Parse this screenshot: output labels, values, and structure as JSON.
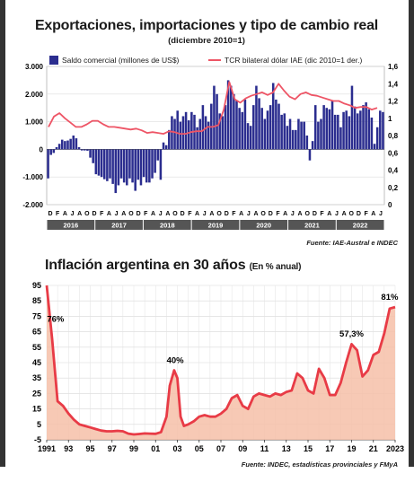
{
  "chart_data": [
    {
      "type": "bar+line",
      "title": "Exportaciones, importaciones y tipo de cambio real",
      "subtitle": "(diciembre 2010=1)",
      "legend": [
        {
          "name": "Saldo comercial (millones de US$)",
          "kind": "bar",
          "color": "#2b2d8f"
        },
        {
          "name": "TCR bilateral dólar IAE (dic 2010=1 der.)",
          "kind": "line",
          "color": "#ee5566"
        }
      ],
      "y_left": {
        "ticks": [
          "3.000",
          "2.000",
          "1.000",
          "0",
          "-1.000",
          "-2.000"
        ],
        "range": [
          -2000,
          3000
        ]
      },
      "y_right": {
        "ticks": [
          "1,6",
          "1,4",
          "1,2",
          "1",
          "0,8",
          "0,6",
          "0,4",
          "0,2",
          "0"
        ],
        "range": [
          0,
          1.6
        ]
      },
      "month_labels": [
        "D",
        "F",
        "A",
        "J",
        "A",
        "O",
        "D",
        "F",
        "A",
        "J",
        "A",
        "O",
        "D",
        "F",
        "A",
        "J",
        "A",
        "O",
        "D",
        "F",
        "A",
        "J",
        "A",
        "O",
        "D",
        "F",
        "A",
        "J",
        "A",
        "O",
        "D",
        "F",
        "A",
        "J",
        "A",
        "O",
        "D",
        "F",
        "A",
        "J",
        "A",
        "O",
        "D",
        "F",
        "A",
        "J"
      ],
      "years": [
        "2016",
        "2017",
        "2018",
        "2019",
        "2020",
        "2021",
        "2022"
      ],
      "bars": [
        -1050,
        -200,
        -130,
        80,
        200,
        350,
        300,
        320,
        380,
        500,
        400,
        80,
        -40,
        -40,
        -50,
        -300,
        -500,
        -900,
        -950,
        -1000,
        -1080,
        -1150,
        -1050,
        -1250,
        -1580,
        -1300,
        -1050,
        -1200,
        -1300,
        -1050,
        -1200,
        -1500,
        -1100,
        -1300,
        -1000,
        -1200,
        -1200,
        -1050,
        -850,
        -400,
        -1100,
        250,
        150,
        700,
        1200,
        1100,
        1400,
        1000,
        1200,
        1350,
        1050,
        1350,
        1250,
        800,
        1100,
        1600,
        1200,
        1000,
        1650,
        2300,
        2000,
        1300,
        1200,
        1600,
        2500,
        2300,
        2000,
        1750,
        1500,
        1350,
        1800,
        950,
        850,
        1600,
        2300,
        1850,
        1500,
        1100,
        1400,
        1600,
        2400,
        1800,
        1650,
        1250,
        1300,
        850,
        1100,
        700,
        700,
        1100,
        1000,
        1000,
        500,
        -400,
        300,
        1600,
        1000,
        1100,
        1600,
        1500,
        1450,
        1750,
        1250,
        1250,
        800,
        1350,
        1400,
        1200,
        2300,
        1550,
        1300,
        1400,
        1600,
        1700,
        1450,
        1150,
        200,
        800,
        1400,
        1350
      ],
      "tcr": [
        0.9,
        1.02,
        1.06,
        1.0,
        0.95,
        0.9,
        0.9,
        0.93,
        0.97,
        0.97,
        0.93,
        0.9,
        0.9,
        0.89,
        0.88,
        0.87,
        0.88,
        0.86,
        0.83,
        0.84,
        0.83,
        0.82,
        0.85,
        0.84,
        0.82,
        0.82,
        0.84,
        0.85,
        0.85,
        0.9,
        0.9,
        0.92,
        1.1,
        1.42,
        1.22,
        1.18,
        1.23,
        1.26,
        1.28,
        1.3,
        1.27,
        1.3,
        1.4,
        1.32,
        1.25,
        1.22,
        1.28,
        1.3,
        1.27,
        1.26,
        1.24,
        1.22,
        1.2,
        1.2,
        1.17,
        1.15,
        1.12,
        1.13,
        1.13,
        1.1,
        1.12
      ],
      "source": "Fuente: IAE-Austral e INDEC"
    },
    {
      "type": "area",
      "title": "Inflación argentina en 30 años",
      "title_unit": "(En % anual)",
      "y_ticks": [
        "95",
        "85",
        "75",
        "65",
        "55",
        "45",
        "35",
        "25",
        "15",
        "5",
        "-5"
      ],
      "y_range": [
        -5,
        95
      ],
      "x_tick_labels": [
        "1991",
        "93",
        "95",
        "97",
        "99",
        "01",
        "03",
        "05",
        "07",
        "09",
        "11",
        "13",
        "15",
        "17",
        "19",
        "21",
        "2023"
      ],
      "x_range": [
        1991,
        2023
      ],
      "series": [
        {
          "color": "#e83b46",
          "points": [
            [
              1991,
              95
            ],
            [
              1991.5,
              60
            ],
            [
              1992,
              20
            ],
            [
              1992.5,
              17
            ],
            [
              1993,
              12
            ],
            [
              1993.5,
              8
            ],
            [
              1994,
              5
            ],
            [
              1994.5,
              4
            ],
            [
              1995,
              3
            ],
            [
              1995.5,
              2
            ],
            [
              1996,
              1
            ],
            [
              1996.5,
              0.5
            ],
            [
              1997,
              0.5
            ],
            [
              1997.5,
              0.8
            ],
            [
              1998,
              0.5
            ],
            [
              1998.5,
              -1
            ],
            [
              1999,
              -1.5
            ],
            [
              1999.5,
              -1.2
            ],
            [
              2000,
              -0.9
            ],
            [
              2000.5,
              -1
            ],
            [
              2001,
              -1.1
            ],
            [
              2001.5,
              0
            ],
            [
              2002,
              10
            ],
            [
              2002.3,
              30
            ],
            [
              2002.7,
              40
            ],
            [
              2003,
              35
            ],
            [
              2003.3,
              10
            ],
            [
              2003.6,
              4
            ],
            [
              2004,
              5
            ],
            [
              2004.5,
              7
            ],
            [
              2005,
              10
            ],
            [
              2005.5,
              11
            ],
            [
              2006,
              10
            ],
            [
              2006.5,
              10
            ],
            [
              2007,
              12
            ],
            [
              2007.5,
              15
            ],
            [
              2008,
              22
            ],
            [
              2008.5,
              24
            ],
            [
              2009,
              17
            ],
            [
              2009.5,
              15
            ],
            [
              2010,
              23
            ],
            [
              2010.5,
              25
            ],
            [
              2011,
              24
            ],
            [
              2011.5,
              23
            ],
            [
              2012,
              25
            ],
            [
              2012.5,
              24
            ],
            [
              2013,
              26
            ],
            [
              2013.5,
              27
            ],
            [
              2014,
              38
            ],
            [
              2014.5,
              35
            ],
            [
              2015,
              27
            ],
            [
              2015.5,
              25
            ],
            [
              2016,
              41
            ],
            [
              2016.5,
              35
            ],
            [
              2017,
              24
            ],
            [
              2017.5,
              24
            ],
            [
              2018,
              32
            ],
            [
              2018.5,
              45
            ],
            [
              2019,
              57
            ],
            [
              2019.5,
              53
            ],
            [
              2020,
              36
            ],
            [
              2020.5,
              40
            ],
            [
              2021,
              50
            ],
            [
              2021.5,
              52
            ],
            [
              2022,
              64
            ],
            [
              2022.5,
              80
            ],
            [
              2023,
              81
            ]
          ]
        }
      ],
      "annotations": [
        "76%",
        "40%",
        "57,3%",
        "81%"
      ],
      "source": "Fuente: INDEC, estadísticas provinciales y FMyA"
    }
  ]
}
